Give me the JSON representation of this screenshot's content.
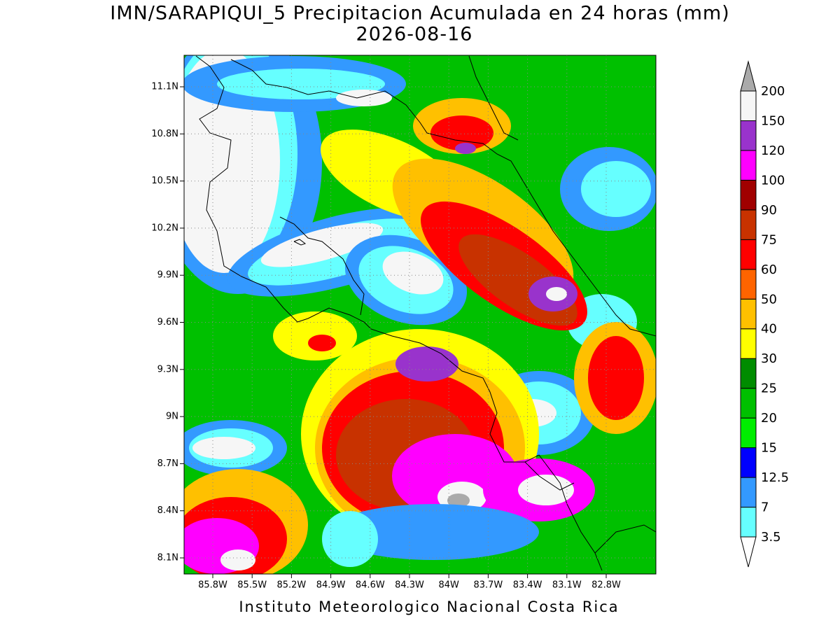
{
  "title": "IMN/SARAPIQUI_5 Precipitacion Acumulada en 24 horas (mm)",
  "date": "2026-08-16",
  "map": {
    "lat_labels": [
      "11.1N",
      "10.8N",
      "10.5N",
      "10.2N",
      "9.9N",
      "9.6N",
      "9.3N",
      "9N",
      "8.7N",
      "8.4N",
      "8.1N"
    ],
    "lon_labels": [
      "85.8W",
      "85.5W",
      "85.2W",
      "84.9W",
      "84.6W",
      "84.3W",
      "84W",
      "83.7W",
      "83.4W",
      "83.1W",
      "82.8W"
    ]
  },
  "colorbar": {
    "levels": [
      3.5,
      7,
      12.5,
      15,
      20,
      25,
      30,
      40,
      50,
      60,
      75,
      90,
      100,
      120,
      150,
      200
    ],
    "colors": [
      "#66ffff",
      "#3399ff",
      "#0000ff",
      "#00ee00",
      "#00c000",
      "#008c00",
      "#ffff00",
      "#ffc000",
      "#ff6400",
      "#ff0000",
      "#c83200",
      "#a00000",
      "#ff00ff",
      "#9933cc",
      "#f6f6f6"
    ],
    "under_color": "#ffffff",
    "over_color": "#aaaaaa"
  },
  "footer": "Instituto Meteorologico Nacional Costa Rica"
}
